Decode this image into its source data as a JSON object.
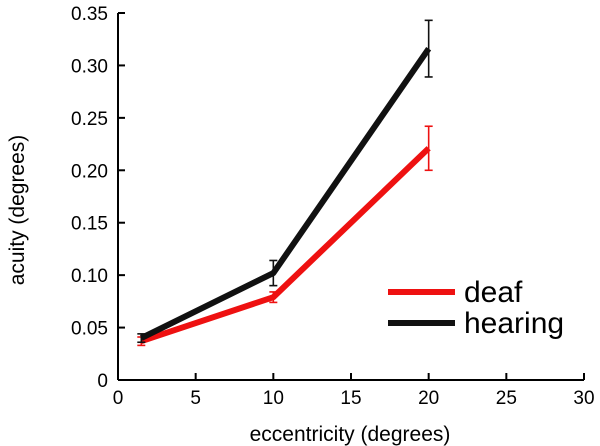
{
  "chart_data": {
    "type": "line",
    "title": "",
    "xlabel": "eccentricity (degrees)",
    "ylabel": "acuity (degrees)",
    "xlim": [
      0,
      30
    ],
    "ylim": [
      0,
      0.35
    ],
    "x_ticks": [
      "0",
      "5",
      "10",
      "15",
      "20",
      "25",
      "30"
    ],
    "y_ticks": [
      "0",
      "0.05",
      "0.10",
      "0.15",
      "0.20",
      "0.25",
      "0.30",
      "0.35"
    ],
    "grid": false,
    "legend_position": "lower-right",
    "series": [
      {
        "name": "deaf",
        "color": "#ee1111",
        "x": [
          1.5,
          10,
          20
        ],
        "y": [
          0.037,
          0.079,
          0.221
        ],
        "err": [
          0.004,
          0.005,
          0.021
        ]
      },
      {
        "name": "hearing",
        "color": "#111111",
        "x": [
          1.5,
          10,
          20
        ],
        "y": [
          0.04,
          0.102,
          0.316
        ],
        "err": [
          0.004,
          0.012,
          0.027
        ]
      }
    ]
  }
}
